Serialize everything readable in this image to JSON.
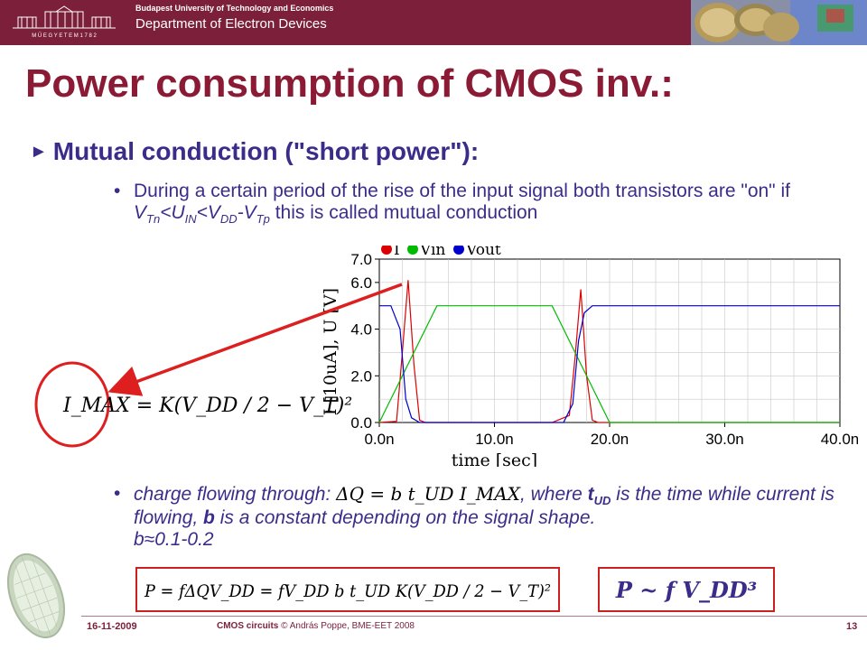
{
  "header": {
    "university": "Budapest University of Technology and Economics",
    "department": "Department of Electron Devices",
    "logo_text": "M Ű E G Y E T E M   1 7 8 2"
  },
  "slide": {
    "title": "Power consumption of CMOS inv.:",
    "subheading": "Mutual conduction (\"short power\"):",
    "bullet1": {
      "part1": "During a certain period of the rise of the input signal both transistors are \"on\" if ",
      "v": "V",
      "tn": "Tn",
      "lt1": "<U",
      "in": "IN",
      "lt2": "<V",
      "dd": "DD",
      "minus": "-V",
      "tp": "Tp",
      "part2": " this is called mutual conduction"
    },
    "imax_formula": "I_MAX = K(V_DD / 2 − V_T)²",
    "bullet2": {
      "part1": "charge flowing through: ",
      "part2": ", where ",
      "t": "t",
      "ud": "UD",
      "part3": " is the time while current is flowing, ",
      "b": "b",
      "part4": " is a constant depending on the signal shape.",
      "approx": "b≈0.1-0.2"
    },
    "dq_formula": "ΔQ = b t_UD I_MAX",
    "power_formula": "P = fΔQV_DD = fV_DD b t_UD K(V_DD / 2 − V_T)²",
    "power_scaling": "P ~ f V_DD³"
  },
  "chart_data": {
    "type": "line",
    "xlabel": "time  [sec]",
    "ylabel": "I [10uA], U [V]",
    "x_ticks": [
      "0.0n",
      "10.0n",
      "20.0n",
      "30.0n",
      "40.0n"
    ],
    "y_ticks": [
      "0.0",
      "2.0",
      "4.0",
      "6.0",
      "7.0"
    ],
    "xlim": [
      0,
      40
    ],
    "ylim": [
      0,
      7
    ],
    "grid": true,
    "legend": "top-left",
    "series": [
      {
        "name": "I",
        "color": "#dd0000",
        "x": [
          0,
          1.5,
          2.0,
          2.5,
          3.0,
          3.5,
          4.0,
          5.0,
          15.0,
          16.5,
          17.0,
          17.5,
          18.0,
          18.5,
          19.0,
          20.0,
          40.0
        ],
        "y": [
          0,
          0.05,
          3.0,
          6.1,
          2.5,
          0.1,
          0.0,
          0.0,
          0.0,
          0.3,
          2.8,
          5.7,
          2.0,
          0.1,
          0.0,
          0.0,
          0.0
        ]
      },
      {
        "name": "Vin",
        "color": "#00bb00",
        "x": [
          0,
          5,
          15,
          20,
          40
        ],
        "y": [
          0,
          5.0,
          5.0,
          0,
          0
        ]
      },
      {
        "name": "Vout",
        "color": "#0000cc",
        "x": [
          0,
          1.0,
          1.8,
          2.3,
          2.8,
          3.5,
          5.0,
          15.0,
          16.0,
          16.8,
          17.3,
          17.8,
          18.5,
          20.0,
          40.0
        ],
        "y": [
          5.0,
          5.0,
          4.0,
          1.0,
          0.2,
          0.0,
          0.0,
          0.0,
          0.0,
          0.8,
          3.5,
          4.7,
          5.0,
          5.0,
          5.0
        ]
      }
    ]
  },
  "footer": {
    "date": "16-11-2009",
    "course": "CMOS circuits",
    "credit": " © András Poppe, BME-EET 2008",
    "page": "13"
  },
  "colors": {
    "banner": "#7b1f3a",
    "title": "#8b1a35",
    "body_text": "#3c2c8a",
    "accent_red": "#dd1f1f"
  }
}
